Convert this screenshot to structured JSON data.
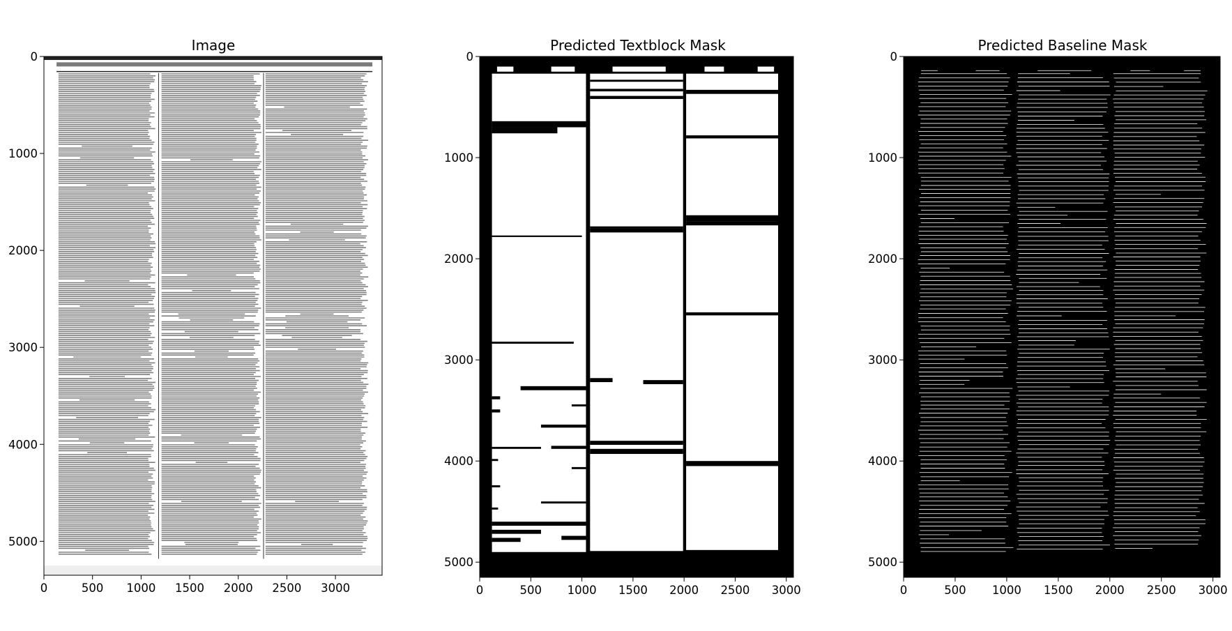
{
  "chart_data": [
    {
      "type": "image",
      "title": "Image",
      "xlim": [
        0,
        3480
      ],
      "ylim": [
        5350,
        0
      ],
      "xticks": [
        "0",
        "500",
        "1000",
        "1500",
        "2000",
        "2500",
        "3000"
      ],
      "yticks": [
        "0",
        "1000",
        "2000",
        "3000",
        "4000",
        "5000"
      ],
      "grid": false,
      "content": "scanned newspaper page, three text columns"
    },
    {
      "type": "image",
      "title": "Predicted Textblock Mask",
      "xlim": [
        0,
        3070
      ],
      "ylim": [
        5150,
        0
      ],
      "xticks": [
        "0",
        "500",
        "1000",
        "1500",
        "2000",
        "2500",
        "3000"
      ],
      "yticks": [
        "0",
        "1000",
        "2000",
        "3000",
        "4000",
        "5000"
      ],
      "grid": false,
      "colors": {
        "foreground": "#ffffff",
        "background": "#000000"
      }
    },
    {
      "type": "image",
      "title": "Predicted Baseline Mask",
      "xlim": [
        0,
        3070
      ],
      "ylim": [
        5150,
        0
      ],
      "xticks": [
        "0",
        "500",
        "1000",
        "1500",
        "2000",
        "2500",
        "3000"
      ],
      "yticks": [
        "0",
        "1000",
        "2000",
        "3000",
        "4000",
        "5000"
      ],
      "grid": false,
      "colors": {
        "foreground": "#ffffff",
        "background": "#000000"
      }
    }
  ]
}
